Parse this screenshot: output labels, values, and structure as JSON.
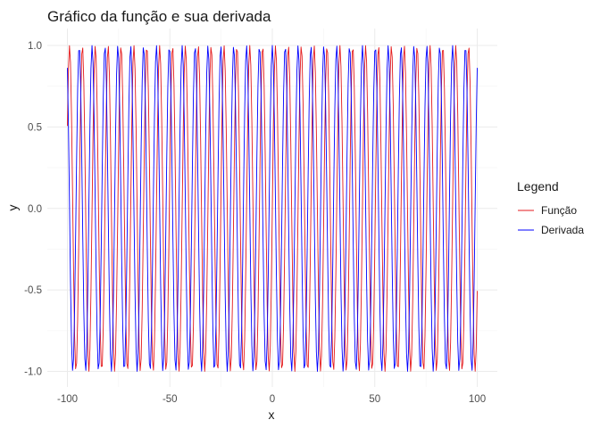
{
  "chart_data": {
    "type": "line",
    "title": "Gráfico da função e sua derivada",
    "xlabel": "x",
    "ylabel": "y",
    "xlim": [
      -100,
      100
    ],
    "ylim": [
      -1.0,
      1.0
    ],
    "x_ticks": [
      -100,
      -50,
      0,
      50,
      100
    ],
    "x_tick_labels": [
      "-100",
      "-50",
      "0",
      "50",
      "100"
    ],
    "y_ticks": [
      -1.0,
      -0.5,
      0.0,
      0.5,
      1.0
    ],
    "y_tick_labels": [
      "-1.0",
      "-0.5",
      "0.0",
      "0.5",
      "1.0"
    ],
    "grid": true,
    "legend": {
      "title": "Legend",
      "position": "right"
    },
    "series": [
      {
        "name": "Função",
        "color": "#e41a1c",
        "function": "sin(x)",
        "x_range": [
          -100,
          100
        ],
        "x_step": 0.5
      },
      {
        "name": "Derivada",
        "color": "#0000ff",
        "function": "cos(x)",
        "x_range": [
          -100,
          100
        ],
        "x_step": 0.5
      }
    ]
  }
}
